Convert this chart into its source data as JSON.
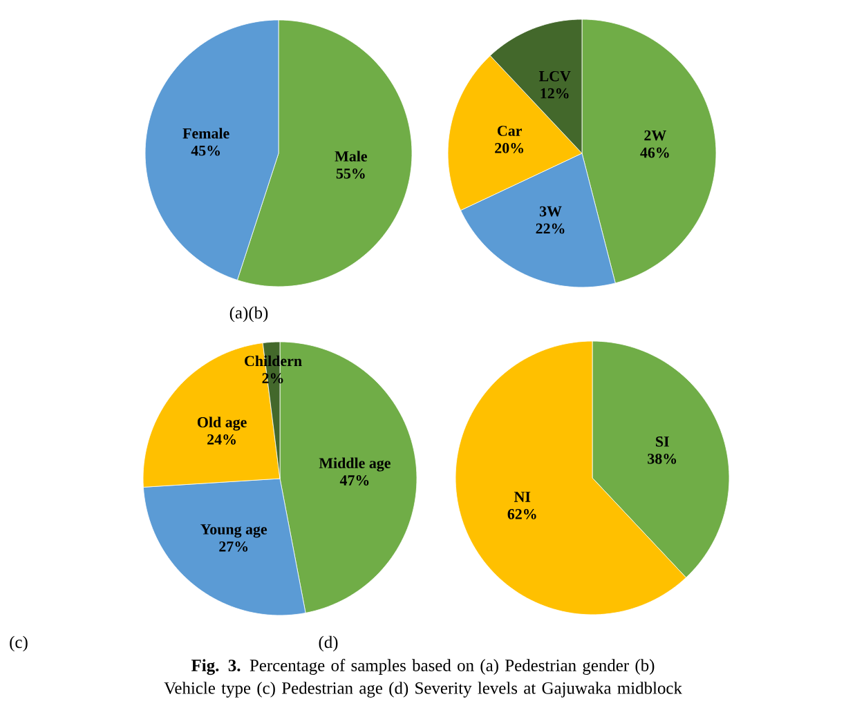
{
  "chart_data": [
    {
      "type": "pie",
      "categories": [
        "Male",
        "Female"
      ],
      "values": [
        55,
        45
      ],
      "value_labels": [
        "55%",
        "45%"
      ],
      "colors": [
        "#70ad47",
        "#5b9bd5"
      ],
      "annotations": [
        "(a)(b)"
      ]
    },
    {
      "type": "pie",
      "categories": [
        "2W",
        "3W",
        "Car",
        "LCV"
      ],
      "values": [
        46,
        22,
        20,
        12
      ],
      "value_labels": [
        "46%",
        "22%",
        "20%",
        "12%"
      ],
      "colors": [
        "#70ad47",
        "#5b9bd5",
        "#ffc000",
        "#43682b"
      ]
    },
    {
      "type": "pie",
      "categories": [
        "Middle age",
        "Young age",
        "Old age",
        "Childern"
      ],
      "values": [
        47,
        27,
        24,
        2
      ],
      "value_labels": [
        "47%",
        "27%",
        "24%",
        "2%"
      ],
      "colors": [
        "#70ad47",
        "#5b9bd5",
        "#ffc000",
        "#43682b"
      ],
      "annotations": [
        "(c)"
      ]
    },
    {
      "type": "pie",
      "categories": [
        "SI",
        "NI"
      ],
      "values": [
        38,
        62
      ],
      "value_labels": [
        "38%",
        "62%"
      ],
      "colors": [
        "#70ad47",
        "#ffc000"
      ],
      "annotations": [
        "(d)",
        "**Fig. 3.** Percentage of samples based on (a) Pedestrian gender (b) Vehicle type (c) Pedestrian age (d) Severity levels at Gajuwaka midblock"
      ]
    }
  ]
}
